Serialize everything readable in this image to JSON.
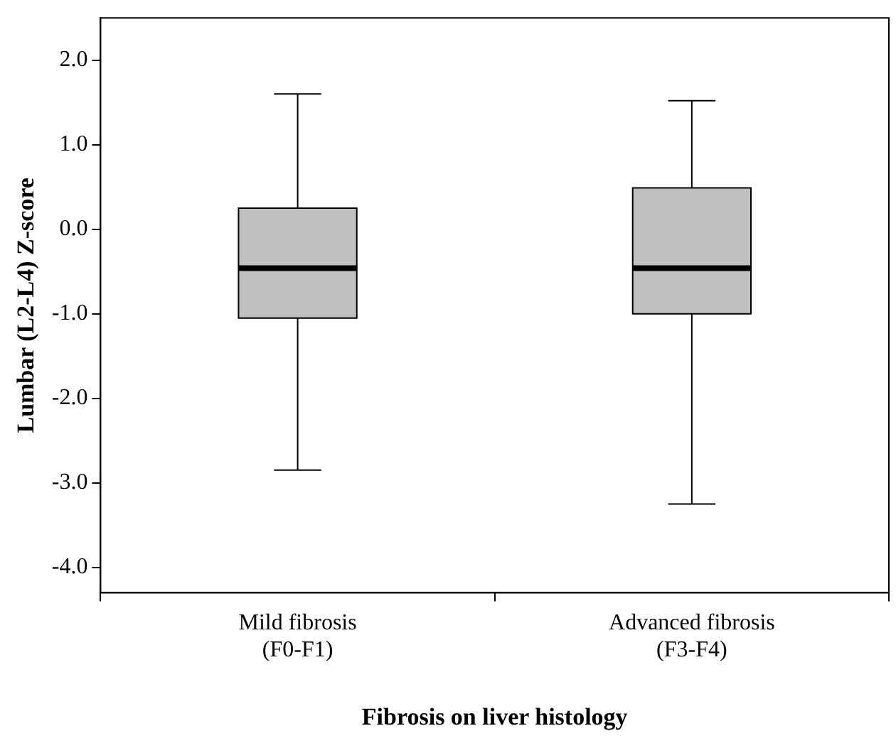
{
  "chart_data": {
    "type": "box",
    "xlabel": "Fibrosis on liver histology",
    "ylabel": "Lumbar (L2-L4) Z-score",
    "categories": [
      "Mild fibrosis\n(F0-F1)",
      "Advanced fibrosis\n(F3-F4)"
    ],
    "color": "#c0c0c0",
    "boxes": [
      {
        "low": -2.85,
        "q1": -1.05,
        "median": -0.46,
        "q3": 0.25,
        "high": 1.6
      },
      {
        "low": -3.25,
        "q1": -1.0,
        "median": -0.46,
        "q3": 0.49,
        "high": 1.52
      }
    ],
    "ylim": [
      -4.3,
      2.5
    ],
    "yticks": [
      {
        "value": 2,
        "label": "2.0"
      },
      {
        "value": 1,
        "label": "1.0"
      },
      {
        "value": 0,
        "label": "0.0"
      },
      {
        "value": -1,
        "label": "-1.0"
      },
      {
        "value": -2,
        "label": "-2.0"
      },
      {
        "value": -3,
        "label": "-3.0"
      },
      {
        "value": -4,
        "label": "-4.0"
      }
    ],
    "grid": false,
    "legend": false
  }
}
